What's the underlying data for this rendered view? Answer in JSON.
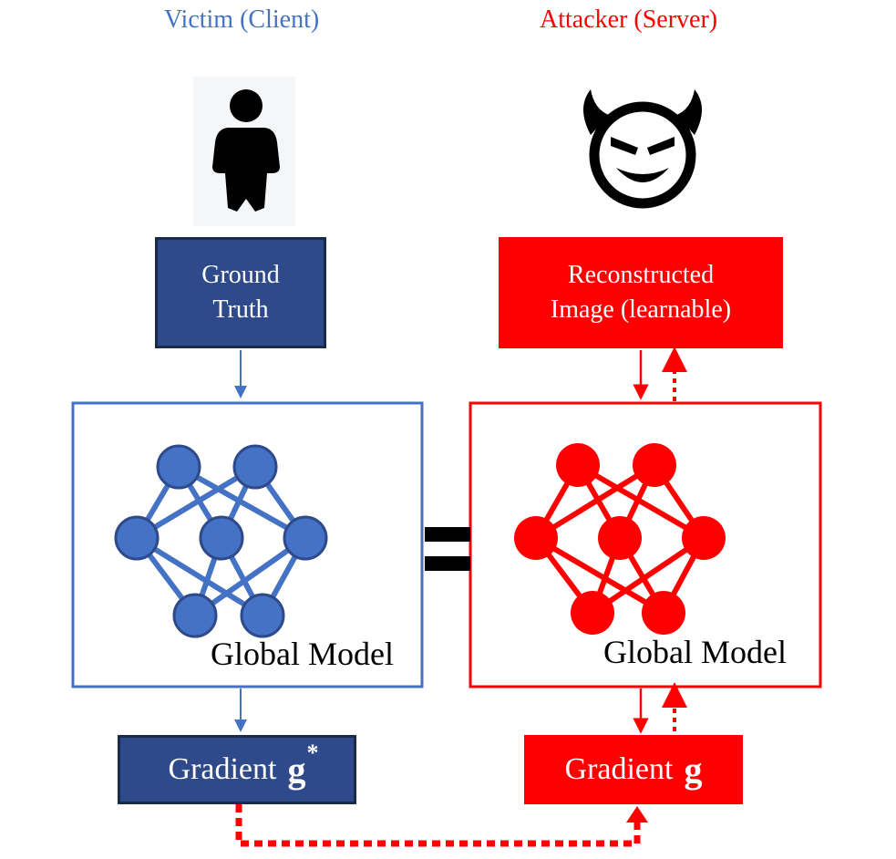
{
  "colors": {
    "victim_blue": "#4472c4",
    "victim_dark": "#2e4a8b",
    "attacker_red": "#ff0000",
    "black": "#000000"
  },
  "victim": {
    "title": "Victim (Client)",
    "icon": "person-icon",
    "input_box": {
      "line1": "Ground",
      "line2": "Truth"
    },
    "model_label": "Global Model",
    "gradient": {
      "text": "Gradient",
      "symbol": "g",
      "superscript": "*"
    }
  },
  "attacker": {
    "title": "Attacker (Server)",
    "icon": "devil-face-icon",
    "input_box": {
      "line1": "Reconstructed",
      "line2": "Image (learnable)"
    },
    "model_label": "Global Model",
    "gradient": {
      "text": "Gradient",
      "symbol": "g"
    }
  },
  "equals_symbol": "="
}
